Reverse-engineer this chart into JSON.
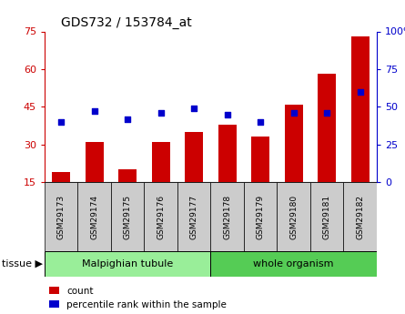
{
  "title": "GDS732 / 153784_at",
  "categories": [
    "GSM29173",
    "GSM29174",
    "GSM29175",
    "GSM29176",
    "GSM29177",
    "GSM29178",
    "GSM29179",
    "GSM29180",
    "GSM29181",
    "GSM29182"
  ],
  "counts": [
    19,
    31,
    20,
    31,
    35,
    38,
    33,
    46,
    58,
    73
  ],
  "percentiles": [
    40,
    47,
    42,
    46,
    49,
    45,
    40,
    46,
    46,
    60
  ],
  "left_ylim": [
    15,
    75
  ],
  "right_ylim": [
    0,
    100
  ],
  "left_yticks": [
    15,
    30,
    45,
    60,
    75
  ],
  "right_yticks": [
    0,
    25,
    50,
    75,
    100
  ],
  "right_yticklabels": [
    "0",
    "25",
    "50",
    "75",
    "100%"
  ],
  "bar_color": "#CC0000",
  "dot_color": "#0000CC",
  "tissue_groups": [
    {
      "label": "Malpighian tubule",
      "start": 0,
      "end": 5,
      "color": "#99EE99"
    },
    {
      "label": "whole organism",
      "start": 5,
      "end": 10,
      "color": "#55CC55"
    }
  ],
  "tissue_label": "tissue ▶",
  "legend_count_label": "count",
  "legend_percentile_label": "percentile rank within the sample",
  "bar_width": 0.55,
  "xlabel_box_color": "#CCCCCC",
  "plot_bg": "#FFFFFF"
}
